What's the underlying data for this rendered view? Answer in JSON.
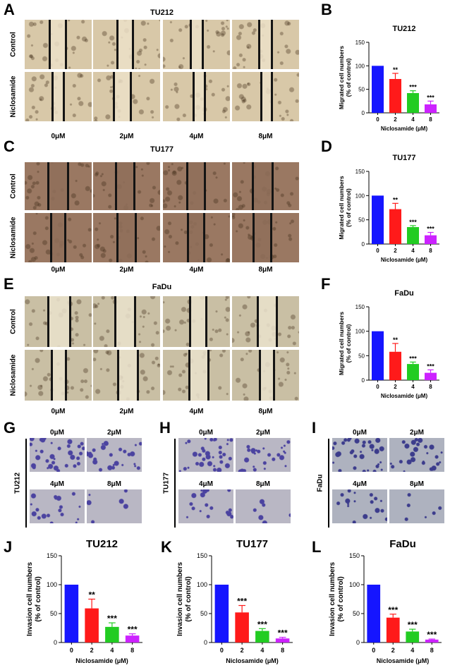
{
  "wound_sections": [
    {
      "letter": "A",
      "title": "TU212",
      "row_labels": [
        "Control",
        "Niclosamide"
      ],
      "conditions": [
        "0μM",
        "2μM",
        "4μM",
        "8μM"
      ],
      "texture_base": "#d8c8a8",
      "texture_gap": "#ece0c8"
    },
    {
      "letter": "C",
      "title": "TU177",
      "row_labels": [
        "Control",
        "Niclosamide"
      ],
      "conditions": [
        "0μM",
        "2μM",
        "4μM",
        "8μM"
      ],
      "texture_base": "#9a7862",
      "texture_gap": "#8f6f5a"
    },
    {
      "letter": "E",
      "title": "FaDu",
      "row_labels": [
        "Control",
        "Niclosamide"
      ],
      "conditions": [
        "0μM",
        "2μM",
        "4μM",
        "8μM"
      ],
      "texture_base": "#c9bfa4",
      "texture_gap": "#eae2cc"
    }
  ],
  "invasion_sections": [
    {
      "letter": "G",
      "cell_line": "TU212",
      "conditions": [
        "0μM",
        "2μM",
        "4μM",
        "8μM"
      ],
      "stain": "#4b43a0",
      "background": "#b9b7c4"
    },
    {
      "letter": "H",
      "cell_line": "TU177",
      "conditions": [
        "0μM",
        "2μM",
        "4μM",
        "8μM"
      ],
      "stain": "#4b43a0",
      "background": "#b9b7c4"
    },
    {
      "letter": "I",
      "cell_line": "FaDu",
      "conditions": [
        "0μM",
        "2μM",
        "4μM",
        "8μM"
      ],
      "stain": "#3c3c8c",
      "background": "#aeb2bf"
    }
  ],
  "chart_data": [
    {
      "letter": "B",
      "type": "bar",
      "title": "TU212",
      "categories": [
        "0",
        "2",
        "4",
        "8"
      ],
      "values": [
        100,
        72,
        42,
        18
      ],
      "errors": [
        0,
        12,
        5,
        7
      ],
      "significance": [
        "",
        "**",
        "***",
        "***"
      ],
      "xlabel": "Niclosamide (μM)",
      "ylabel": [
        "Migrated cell numbers",
        "(% of control)"
      ],
      "ylim": [
        0,
        150
      ],
      "yticks": [
        "0",
        "50",
        "100",
        "150"
      ],
      "colors": [
        "#1515ff",
        "#ff1a1a",
        "#22cc22",
        "#cc22ff"
      ]
    },
    {
      "letter": "D",
      "type": "bar",
      "title": "TU177",
      "categories": [
        "0",
        "2",
        "4",
        "8"
      ],
      "values": [
        100,
        72,
        35,
        18
      ],
      "errors": [
        0,
        12,
        3,
        6
      ],
      "significance": [
        "",
        "**",
        "***",
        "***"
      ],
      "xlabel": "Niclosamide (μM)",
      "ylabel": [
        "Migrated cell numbers",
        "(% of control)"
      ],
      "ylim": [
        0,
        150
      ],
      "yticks": [
        "0",
        "50",
        "100",
        "150"
      ],
      "colors": [
        "#1515ff",
        "#ff1a1a",
        "#22cc22",
        "#cc22ff"
      ]
    },
    {
      "letter": "F",
      "type": "bar",
      "title": "FaDu",
      "categories": [
        "0",
        "2",
        "4",
        "8"
      ],
      "values": [
        100,
        58,
        33,
        15
      ],
      "errors": [
        0,
        17,
        4,
        6
      ],
      "significance": [
        "",
        "**",
        "***",
        "***"
      ],
      "xlabel": "Niclosamide (μM)",
      "ylabel": [
        "Migrated cell numbers",
        "(% of control)"
      ],
      "ylim": [
        0,
        150
      ],
      "yticks": [
        "0",
        "50",
        "100",
        "150"
      ],
      "colors": [
        "#1515ff",
        "#ff1a1a",
        "#22cc22",
        "#cc22ff"
      ]
    },
    {
      "letter": "J",
      "type": "bar",
      "title": "TU212",
      "categories": [
        "0",
        "2",
        "4",
        "8"
      ],
      "values": [
        100,
        59,
        27,
        12
      ],
      "errors": [
        0,
        16,
        7,
        3
      ],
      "significance": [
        "",
        "**",
        "***",
        "***"
      ],
      "xlabel": "Niclosamide (μM)",
      "ylabel": [
        "Invasion cell numbers",
        "(% of control)"
      ],
      "ylim": [
        0,
        150
      ],
      "yticks": [
        "0",
        "50",
        "100",
        "150"
      ],
      "colors": [
        "#1515ff",
        "#ff1a1a",
        "#22cc22",
        "#cc22ff"
      ]
    },
    {
      "letter": "K",
      "type": "bar",
      "title": "TU177",
      "categories": [
        "0",
        "2",
        "4",
        "8"
      ],
      "values": [
        100,
        52,
        20,
        7
      ],
      "errors": [
        0,
        12,
        4,
        2
      ],
      "significance": [
        "",
        "***",
        "***",
        "***"
      ],
      "xlabel": "Niclosamide (μM)",
      "ylabel": [
        "Invasion cell numbers",
        "(% of control)"
      ],
      "ylim": [
        0,
        150
      ],
      "yticks": [
        "0",
        "50",
        "100",
        "150"
      ],
      "colors": [
        "#1515ff",
        "#ff1a1a",
        "#22cc22",
        "#cc22ff"
      ]
    },
    {
      "letter": "L",
      "type": "bar",
      "title": "FaDu",
      "categories": [
        "0",
        "2",
        "4",
        "8"
      ],
      "values": [
        100,
        43,
        19,
        5
      ],
      "errors": [
        0,
        6,
        4,
        1
      ],
      "significance": [
        "",
        "***",
        "***",
        "***"
      ],
      "xlabel": "Niclosamide (μM)",
      "ylabel": [
        "Invasion cell numbers",
        "(% of control)"
      ],
      "ylim": [
        0,
        150
      ],
      "yticks": [
        "0",
        "50",
        "100",
        "150"
      ],
      "colors": [
        "#1515ff",
        "#ff1a1a",
        "#22cc22",
        "#cc22ff"
      ]
    }
  ]
}
